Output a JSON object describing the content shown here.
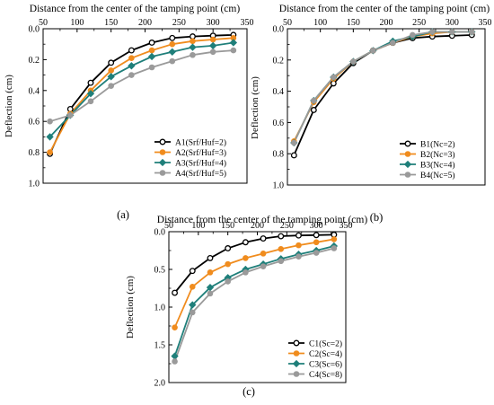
{
  "chart_data": [
    {
      "type": "line",
      "panel_label": "(a)",
      "xlabel": "Distance from the center of the tamping point (cm)",
      "ylabel": "Deflection (cm)",
      "xlim": [
        50,
        350
      ],
      "ylim": [
        0,
        1.0
      ],
      "y_inverted": true,
      "x_axis_position": "top",
      "xticks": [
        50,
        100,
        150,
        200,
        250,
        300,
        350
      ],
      "yticks": [
        0.0,
        0.2,
        0.4,
        0.6,
        0.8,
        1.0
      ],
      "ytick_labels": [
        "0.0",
        "0.2",
        "0.4",
        "0.6",
        "0.8",
        "1.0"
      ],
      "legend_position": "lower-right",
      "x": [
        60,
        90,
        120,
        150,
        180,
        210,
        240,
        270,
        300,
        330
      ],
      "series": [
        {
          "name": "A1(Srf/Huf=2)",
          "color": "#000000",
          "marker": "circle",
          "values": [
            0.81,
            0.52,
            0.35,
            0.22,
            0.14,
            0.09,
            0.06,
            0.05,
            0.045,
            0.04
          ]
        },
        {
          "name": "A2(Srf/Huf=3)",
          "color": "#f08c1e",
          "marker": "circle",
          "values": [
            0.8,
            0.55,
            0.4,
            0.27,
            0.19,
            0.14,
            0.1,
            0.08,
            0.07,
            0.06
          ]
        },
        {
          "name": "A3(Srf/Huf=4)",
          "color": "#1f7f7a",
          "marker": "diamond",
          "values": [
            0.7,
            0.56,
            0.42,
            0.31,
            0.24,
            0.18,
            0.15,
            0.12,
            0.11,
            0.09
          ]
        },
        {
          "name": "A4(Srf/Huf=5)",
          "color": "#9a9a9a",
          "marker": "circle",
          "values": [
            0.6,
            0.56,
            0.47,
            0.37,
            0.3,
            0.25,
            0.21,
            0.17,
            0.15,
            0.14
          ]
        }
      ]
    },
    {
      "type": "line",
      "panel_label": "(b)",
      "xlabel": "Distance from the center of the tamping point (cm)",
      "ylabel": "Deflection (cm)",
      "xlim": [
        50,
        350
      ],
      "ylim": [
        0,
        1.0
      ],
      "y_inverted": true,
      "x_axis_position": "top",
      "xticks": [
        50,
        100,
        150,
        200,
        250,
        300,
        350
      ],
      "yticks": [
        0.0,
        0.2,
        0.4,
        0.6,
        0.8,
        1.0
      ],
      "ytick_labels": [
        "0.0",
        "0.2",
        "0.4",
        "0.6",
        "0.8",
        "1.0"
      ],
      "legend_position": "lower-right",
      "x": [
        60,
        90,
        120,
        150,
        180,
        210,
        240,
        270,
        300,
        330
      ],
      "series": [
        {
          "name": "B1(Nc=2)",
          "color": "#000000",
          "marker": "circle",
          "values": [
            0.81,
            0.52,
            0.35,
            0.22,
            0.14,
            0.09,
            0.06,
            0.05,
            0.045,
            0.04
          ]
        },
        {
          "name": "B2(Nc=3)",
          "color": "#f08c1e",
          "marker": "circle",
          "values": [
            0.72,
            0.47,
            0.32,
            0.21,
            0.14,
            0.09,
            0.05,
            0.03,
            0.02,
            0.02
          ]
        },
        {
          "name": "B3(Nc=4)",
          "color": "#1f7f7a",
          "marker": "diamond",
          "values": [
            0.73,
            0.46,
            0.31,
            0.21,
            0.14,
            0.08,
            0.05,
            0.02,
            0.02,
            0.02
          ]
        },
        {
          "name": "B4(Nc=5)",
          "color": "#9a9a9a",
          "marker": "circle",
          "values": [
            0.73,
            0.46,
            0.31,
            0.21,
            0.14,
            0.09,
            0.04,
            0.02,
            0.02,
            0.02
          ]
        }
      ]
    },
    {
      "type": "line",
      "panel_label": "(c)",
      "xlabel": "Distance from the center of the tamping point (cm)",
      "ylabel": "Deflection (cm)",
      "xlim": [
        50,
        350
      ],
      "ylim": [
        0,
        2.0
      ],
      "y_inverted": true,
      "x_axis_position": "top",
      "xticks": [
        50,
        100,
        150,
        200,
        250,
        300,
        350
      ],
      "yticks": [
        0.0,
        0.5,
        1.0,
        1.5,
        2.0
      ],
      "ytick_labels": [
        "0.0",
        "0.5",
        "1.0",
        "1.5",
        "2.0"
      ],
      "legend_position": "lower-right",
      "x": [
        60,
        90,
        120,
        150,
        180,
        210,
        240,
        270,
        300,
        330
      ],
      "series": [
        {
          "name": "C1(Sc=2)",
          "color": "#000000",
          "marker": "circle",
          "values": [
            0.81,
            0.52,
            0.35,
            0.22,
            0.14,
            0.09,
            0.06,
            0.05,
            0.045,
            0.04
          ]
        },
        {
          "name": "C2(Sc=4)",
          "color": "#f08c1e",
          "marker": "circle",
          "values": [
            1.27,
            0.73,
            0.54,
            0.43,
            0.35,
            0.29,
            0.23,
            0.18,
            0.14,
            0.1
          ]
        },
        {
          "name": "C3(Sc=6)",
          "color": "#1f7f7a",
          "marker": "diamond",
          "values": [
            1.65,
            0.97,
            0.74,
            0.61,
            0.5,
            0.43,
            0.36,
            0.3,
            0.25,
            0.19
          ]
        },
        {
          "name": "C4(Sc=8)",
          "color": "#9a9a9a",
          "marker": "circle",
          "values": [
            1.72,
            1.07,
            0.82,
            0.66,
            0.54,
            0.46,
            0.39,
            0.33,
            0.28,
            0.22
          ]
        }
      ]
    }
  ]
}
